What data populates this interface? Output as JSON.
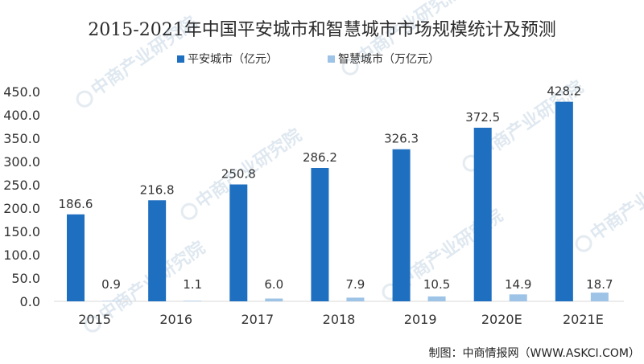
{
  "chart_data": {
    "type": "bar",
    "title": "2015-2021年中国平安城市和智慧城市市场规模统计及预测",
    "categories": [
      "2015",
      "2016",
      "2017",
      "2018",
      "2019",
      "2020E",
      "2021E"
    ],
    "series": [
      {
        "name": "平安城市（亿元）",
        "color": "#1f6fc0",
        "values": [
          186.6,
          216.8,
          250.8,
          286.2,
          326.3,
          372.5,
          428.2
        ],
        "labels": [
          "186.6",
          "216.8",
          "250.8",
          "286.2",
          "326.3",
          "372.5",
          "428.2"
        ]
      },
      {
        "name": "智慧城市（万亿元）",
        "color": "#9dc3e6",
        "values": [
          0.9,
          1.1,
          6.0,
          7.9,
          10.5,
          14.9,
          18.7
        ],
        "labels": [
          "0.9",
          "1.1",
          "6.0",
          "7.9",
          "10.5",
          "14.9",
          "18.7"
        ]
      }
    ],
    "ylim": [
      0,
      450
    ],
    "yticks": [
      "0.0",
      "50.0",
      "100.0",
      "150.0",
      "200.0",
      "250.0",
      "300.0",
      "350.0",
      "400.0",
      "450.0"
    ],
    "grid": false,
    "legend_position": "top-center",
    "xlabel": "",
    "ylabel": ""
  },
  "source": "制图：中商情报网（WWW.ASKCI.COM）",
  "watermark": "中商产业研究院"
}
